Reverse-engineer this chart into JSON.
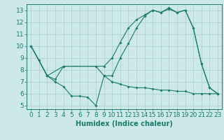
{
  "xlabel": "Humidex (Indice chaleur)",
  "bg_color": "#cce8e8",
  "line_color": "#1a7a6e",
  "grid_color": "#aacccc",
  "xlim": [
    -0.5,
    23.5
  ],
  "ylim": [
    4.7,
    13.5
  ],
  "xticks": [
    0,
    1,
    2,
    3,
    4,
    5,
    6,
    7,
    8,
    9,
    10,
    11,
    12,
    13,
    14,
    15,
    16,
    17,
    18,
    19,
    20,
    21,
    22,
    23
  ],
  "yticks": [
    5,
    6,
    7,
    8,
    9,
    10,
    11,
    12,
    13
  ],
  "line1_x": [
    0,
    1,
    2,
    3,
    4,
    5,
    6,
    7,
    8,
    9,
    10,
    11,
    12,
    13,
    14,
    15,
    16,
    17,
    18,
    19,
    20,
    21,
    22,
    23
  ],
  "line1_y": [
    10,
    8.8,
    7.5,
    7.0,
    6.6,
    5.8,
    5.8,
    5.7,
    5.0,
    7.5,
    7.5,
    9.0,
    10.2,
    11.5,
    12.5,
    13.0,
    12.8,
    13.2,
    12.8,
    13.0,
    11.5,
    8.5,
    6.5,
    6.0
  ],
  "line2_x": [
    0,
    2,
    4,
    9,
    10,
    11,
    12,
    13,
    14,
    15,
    16,
    17,
    18,
    19,
    20,
    21,
    22,
    23
  ],
  "line2_y": [
    10,
    7.5,
    8.3,
    8.3,
    9.0,
    10.3,
    11.5,
    12.2,
    12.6,
    13.0,
    12.8,
    13.1,
    12.8,
    13.0,
    11.5,
    8.5,
    6.5,
    6.0
  ],
  "line3_x": [
    0,
    2,
    3,
    4,
    8,
    9,
    10,
    11,
    12,
    13,
    14,
    15,
    16,
    17,
    18,
    19,
    20,
    21,
    22,
    23
  ],
  "line3_y": [
    10,
    7.5,
    7.2,
    8.3,
    8.3,
    7.5,
    7.0,
    6.8,
    6.6,
    6.5,
    6.5,
    6.4,
    6.3,
    6.3,
    6.2,
    6.2,
    6.0,
    6.0,
    6.0,
    6.0
  ],
  "font_size": 6.5,
  "label_fontsize": 7.0,
  "linewidth": 0.8,
  "markersize": 2.0
}
